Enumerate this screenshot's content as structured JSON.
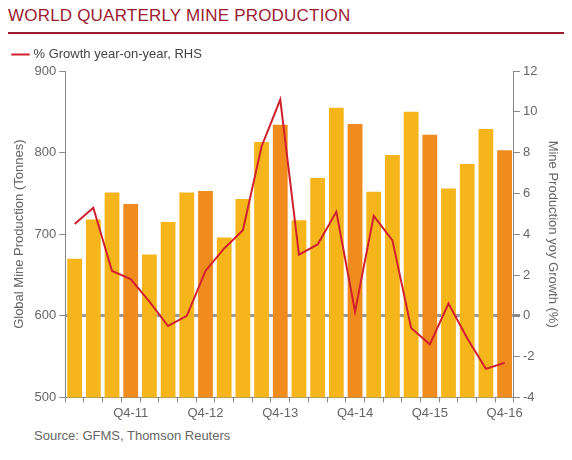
{
  "chart_data": {
    "type": "bar",
    "title": "WORLD QUARTERLY MINE PRODUCTION",
    "source": "Source: GFMS, Thomson Reuters",
    "y_label": "Global Mine Production (Tonnes)",
    "y2_label": "Mine Production yoy Growth (%)",
    "categories": [
      null,
      null,
      null,
      "Q4-11",
      null,
      null,
      null,
      "Q4-12",
      null,
      null,
      null,
      "Q4-13",
      null,
      null,
      null,
      "Q4-14",
      null,
      null,
      null,
      "Q4-15",
      null,
      null,
      null,
      "Q4-16"
    ],
    "series": [
      {
        "type": "bar",
        "colors": [
          "#f7b51c",
          "#f7b51c",
          "#f7b51c",
          "#f08c1e",
          "#f7b51c",
          "#f7b51c",
          "#f7b51c",
          "#f08c1e",
          "#f7b51c",
          "#f7b51c",
          "#f7b51c",
          "#f08c1e",
          "#f7b51c",
          "#f7b51c",
          "#f7b51c",
          "#f08c1e",
          "#f7b51c",
          "#f7b51c",
          "#f7b51c",
          "#f08c1e",
          "#f7b51c",
          "#f7b51c",
          "#f7b51c",
          "#f08c1e"
        ],
        "values": [
          670,
          718,
          751,
          737,
          675,
          715,
          751,
          753,
          696,
          743,
          813,
          834,
          717,
          769,
          855,
          835,
          752,
          797,
          850,
          822,
          756,
          786,
          829,
          803
        ]
      },
      {
        "name": "% Growth year-on-year, RHS",
        "type": "line",
        "color": "#d0202e",
        "axis": "y2",
        "values": [
          4.5,
          5.3,
          2.2,
          1.8,
          0.7,
          -0.5,
          0.0,
          2.2,
          3.3,
          4.2,
          8.3,
          10.6,
          3.0,
          3.5,
          5.1,
          0.2,
          4.9,
          3.7,
          -0.6,
          -1.4,
          0.6,
          -1.1,
          -2.6,
          -2.3
        ]
      }
    ],
    "ylim": [
      500,
      900
    ],
    "yticks": [
      500,
      600,
      700,
      800,
      900
    ],
    "y2lim": [
      -4,
      12
    ],
    "y2ticks": [
      -4,
      -2,
      0,
      2,
      4,
      6,
      8,
      10,
      12
    ],
    "grid": false,
    "legend": "upper left"
  }
}
